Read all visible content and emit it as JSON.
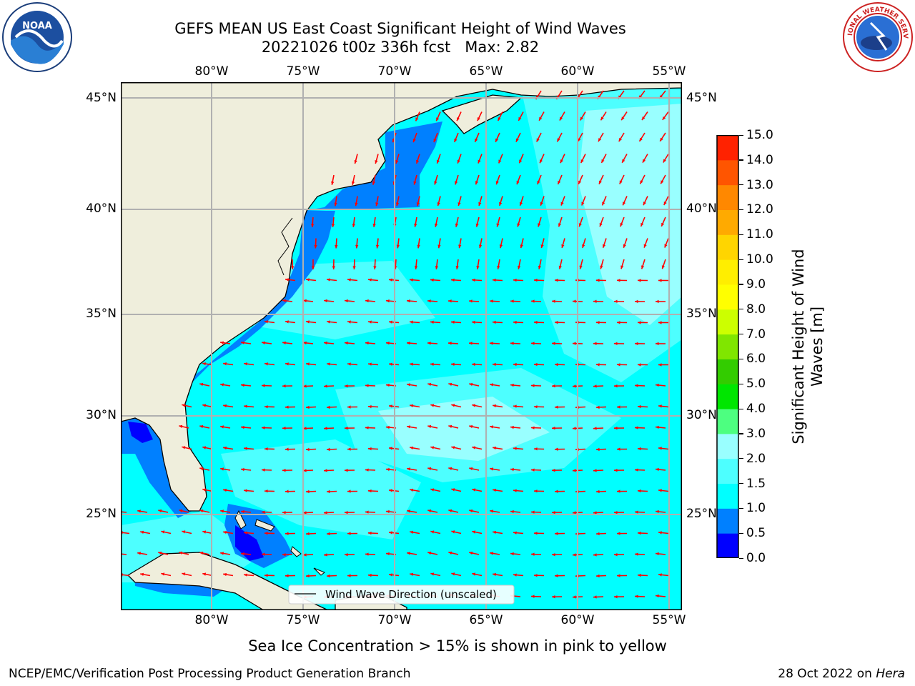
{
  "header": {
    "title_line1": "GEFS MEAN US East Coast Significant Height of Wind Waves",
    "title_line2": "20221026 t00z 336h fcst   Max: 2.82",
    "noaa_logo_text": "NOAA",
    "nws_logo_text": "NATIONAL WEATHER SERVICE"
  },
  "map": {
    "lon_labels": [
      "80°W",
      "75°W",
      "70°W",
      "65°W",
      "60°W",
      "55°W"
    ],
    "lat_labels": [
      "45°N",
      "40°N",
      "35°N",
      "30°N",
      "25°N"
    ],
    "lon_range": [
      -85,
      -54.5
    ],
    "lat_range": [
      20.5,
      46
    ],
    "legend_label": "Wind Wave Direction (unscaled)",
    "land_color": "#efeedc",
    "arrow_color": "#ff0000",
    "grid": true
  },
  "colorbar": {
    "label_line1": "Significant Height of Wind",
    "label_line2": "Waves [m]",
    "ticks": [
      "0.0",
      "0.5",
      "1.0",
      "1.5",
      "2.0",
      "3.0",
      "4.0",
      "5.0",
      "6.0",
      "7.0",
      "8.0",
      "9.0",
      "10.0",
      "11.0",
      "12.0",
      "13.0",
      "14.0",
      "15.0"
    ],
    "colors": [
      "#0000ff",
      "#0080ff",
      "#00ffff",
      "#4dffff",
      "#99ffff",
      "#4dff80",
      "#00e600",
      "#33cc00",
      "#80e600",
      "#ccff00",
      "#ffff00",
      "#ffee00",
      "#ffd500",
      "#ffaa00",
      "#ff8800",
      "#ff5500",
      "#ff2200"
    ]
  },
  "footer": {
    "sea_ice_note": "Sea Ice Concentration > 15% is shown in pink to yellow",
    "left_credit": "NCEP/EMC/Verification Post Processing Product Generation Branch",
    "right_date": "28 Oct 2022 on ",
    "right_machine": "Hera"
  }
}
